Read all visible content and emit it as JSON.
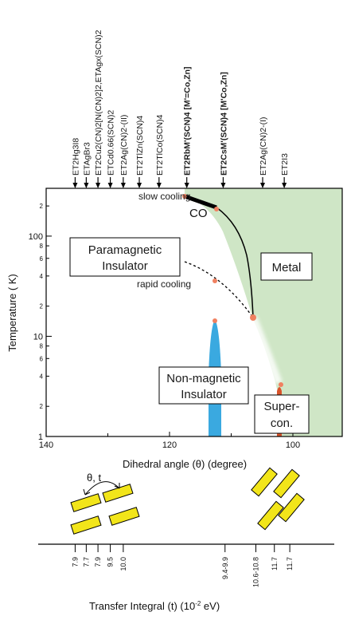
{
  "compounds": [
    {
      "label": "ET2Hg3I8",
      "bold": false,
      "angle": 135.3
    },
    {
      "label": "ETAgBr3",
      "bold": false,
      "angle": 133.5
    },
    {
      "label": "ET2Cu2(CN)2[N(CN)2]2,ETAgx(SCN)2",
      "bold": false,
      "angle": 131.6
    },
    {
      "label": "ETCd0.66(SCN)2",
      "bold": false,
      "angle": 129.6
    },
    {
      "label": "ET2Ag(CN)2-(II)",
      "bold": false,
      "angle": 127.5
    },
    {
      "label": "ET2TlZn(SCN)4",
      "bold": false,
      "angle": 124.9
    },
    {
      "label": "ET2TlCo(SCN)4",
      "bold": false,
      "angle": 121.7
    },
    {
      "label": "ET2RbM'(SCN)4 [M'=Co,Zn]",
      "bold": true,
      "angle": 117.2
    },
    {
      "label": "ET2CsM'(SCN)4 [M'Co,Zn]",
      "bold": true,
      "angle": 111.3
    },
    {
      "label": "ET2Ag(CN)2-(I)",
      "bold": false,
      "angle": 104.9
    },
    {
      "label": "ET2I3",
      "bold": false,
      "angle": 101.4
    }
  ],
  "phases": {
    "paramagnetic": [
      "Paramagnetic",
      "Insulator"
    ],
    "metal": "Metal",
    "nonmagnetic": [
      "Non-magnetic",
      "Insulator"
    ],
    "supercon": [
      "Super-",
      "con."
    ]
  },
  "annotations": {
    "slow_cooling": "slow cooling",
    "co": "CO",
    "rapid_cooling": "rapid cooling"
  },
  "axes": {
    "xlabel": "Dihedral angle (θ) (degree)",
    "ylabel": "Temperature ( K)",
    "x_ticks": [
      "140",
      "120",
      "100"
    ],
    "y_major": [
      "1",
      "10",
      "100"
    ],
    "y_minor": [
      "2",
      "4",
      "6",
      "8",
      "2",
      "4",
      "6",
      "8",
      "2"
    ],
    "xlim": [
      140,
      92
    ],
    "ylim_log": [
      1,
      300
    ]
  },
  "transfer": {
    "theta_t_label": "θ, t",
    "values": [
      "7.9",
      "7.7",
      "7.9",
      "9.5",
      "10.0",
      "9.4-9.9",
      "10.6-10.8",
      "11.7",
      "11.7"
    ],
    "xlabel": "Transfer Integral (t) (10",
    "xlabel_exp": "-2",
    "xlabel_end": " eV)"
  },
  "colors": {
    "metal": "#cfe6c6",
    "nonmagnetic": "#3aa9e0",
    "supercon": "#d9542b",
    "boundary": "#000000",
    "dots": "#f08060",
    "rect": "#f2e51a"
  }
}
